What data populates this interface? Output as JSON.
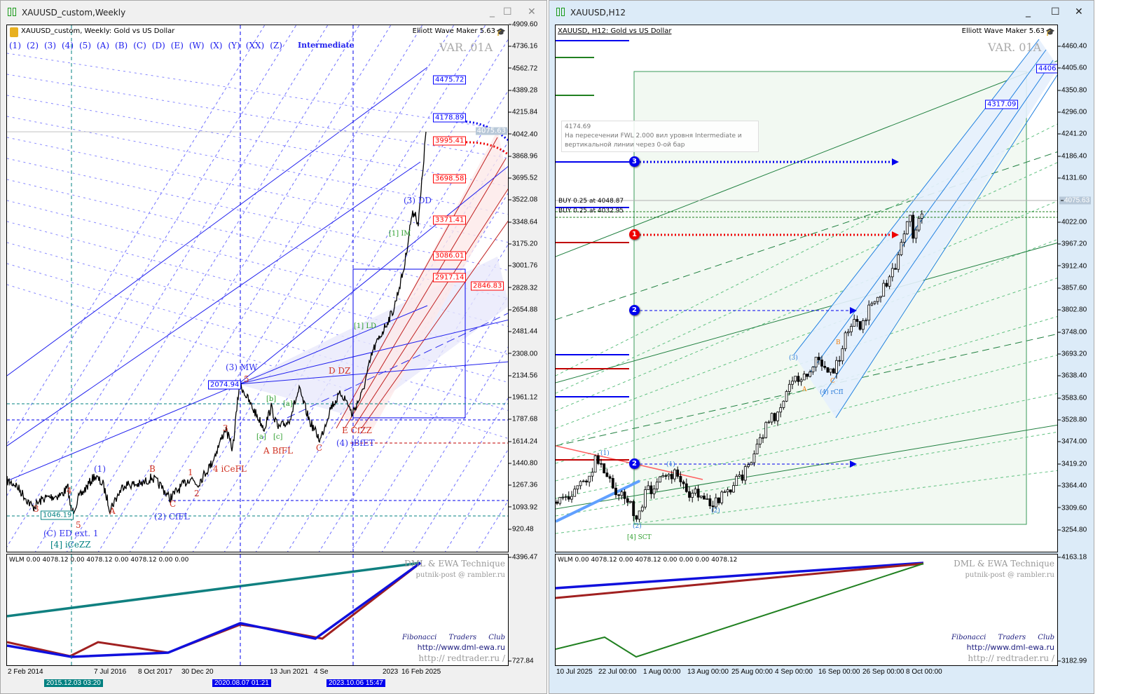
{
  "left": {
    "title": "XAUUSD_custom,Weekly",
    "chart_header": "XAUUSD_custom, Weekly:  Gold vs US Dollar",
    "plugin": "Elliott Wave Maker 5.63",
    "var_label": "VAR. 01A",
    "wave_buttons": [
      "(1)",
      "(2)",
      "(3)",
      "(4)",
      "(5)",
      "(A)",
      "(B)",
      "(C)",
      "(D)",
      "(E)",
      "(W)",
      "(X)",
      "(Y)",
      "(XX)",
      "(Z)"
    ],
    "degree": "Intermediate",
    "price_axis": [
      "4909.60",
      "4736.16",
      "4562.72",
      "4389.28",
      "4215.84",
      "4042.40",
      "3868.96",
      "3695.52",
      "3522.08",
      "3348.64",
      "3175.20",
      "3001.76",
      "2828.32",
      "2654.88",
      "2481.44",
      "2308.00",
      "2134.56",
      "1961.12",
      "1787.68",
      "1614.24",
      "1440.80",
      "1267.36",
      "1093.92",
      "920.48"
    ],
    "current_price": "4075.63",
    "time_axis": [
      "2 Feb 2014",
      "7 Jul 2016",
      "8 Oct 2017",
      "30 Dec 20",
      "13 Jun 2021",
      "4 Se",
      "2023",
      "16 Feb 2025"
    ],
    "time_markers": [
      "2015.12.03 03:20",
      "2020.08.07 01:21",
      "2023.10.06 15:47"
    ],
    "price_levels": [
      {
        "value": "4475.72",
        "color": "#0000ff"
      },
      {
        "value": "4178.89",
        "color": "#0000ff"
      },
      {
        "value": "3995.41",
        "color": "#ff0000"
      },
      {
        "value": "3698.58",
        "color": "#ff0000"
      },
      {
        "value": "3371.41",
        "color": "#ff0000"
      },
      {
        "value": "3086.01",
        "color": "#ff0000"
      },
      {
        "value": "2917.14",
        "color": "#ff0000"
      },
      {
        "value": "2846.83",
        "color": "#ff0000"
      },
      {
        "value": "2074.94",
        "color": "#0000ff"
      },
      {
        "value": "1046.19",
        "color": "#008080"
      }
    ],
    "wave_labels": [
      "(3) MW",
      "5",
      "3",
      "4 iCeFL",
      "1",
      "2",
      "(1)",
      "B",
      "A",
      "C",
      "(2) CfFL",
      "3",
      "4",
      "5",
      "(C) ED ext. 1",
      "[4] iCeZZ",
      "[b]",
      "[a]",
      "[a]",
      "[c]",
      "A BfFL",
      "C",
      "D DZ",
      "E CfZZ",
      "(4) iBfET",
      "[1] LD",
      "[1] IM",
      "(3) DD"
    ],
    "indicator": {
      "readout": "WLM 0.00 4078.12 0.00 4078.12 0.00 4078.12 0.00 0.00",
      "axis_top": "4396.47",
      "axis_bottom": "727.84",
      "watermark": "DML & EWA Technique",
      "email": "putnik-post @ rambler.ru",
      "club": "Fibonacci Traders Club",
      "url1": "http://www.dml-ewa.ru",
      "url2": "http:// redtrader.ru /"
    }
  },
  "right": {
    "title": "XAUUSD,H12",
    "chart_header": "XAUUSD, H12:  Gold vs US Dollar",
    "plugin": "Elliott Wave Maker 5.63",
    "var_label": "VAR. 01A",
    "price_axis": [
      "4460.40",
      "4405.60",
      "4350.80",
      "4296.00",
      "4241.20",
      "4186.40",
      "4131.60",
      "4022.00",
      "3967.20",
      "3912.40",
      "3857.60",
      "3802.80",
      "3748.00",
      "3693.20",
      "3638.40",
      "3583.60",
      "3528.80",
      "3474.00",
      "3419.20",
      "3364.40",
      "3309.60",
      "3254.80"
    ],
    "current_price": "4075.63",
    "time_axis": [
      "10 Jul 2025",
      "22 Jul 00:00",
      "1 Aug 00:00",
      "13 Aug 00:00",
      "25 Aug 00:00",
      "4 Sep 00:00",
      "16 Sep 00:00",
      "26 Sep 00:00",
      "8 Oct 00:00"
    ],
    "price_levels": [
      {
        "value": "4406.",
        "color": "#0000ff"
      },
      {
        "value": "4317.09",
        "color": "#0000ff"
      }
    ],
    "tooltip": {
      "value": "4174.69",
      "text": "На пересечении FWL 2.000 вил уровня Intermediate и вертикальной линии через 0-ой бар"
    },
    "orders": [
      "BUY 0.25 at 4048.87",
      "BUY 0.25 at 4032.95"
    ],
    "badges": [
      {
        "label": "3",
        "color": "#0000ee"
      },
      {
        "label": "1",
        "color": "#ee0000"
      },
      {
        "label": "2",
        "color": "#0000ee"
      },
      {
        "label": "2",
        "color": "#0000ee"
      }
    ],
    "wave_labels": [
      "(3)",
      "A",
      "B",
      "C",
      "(4) rCfI",
      "(2)",
      "(2)",
      "[4] SCT",
      "(1)",
      "(1)"
    ],
    "indicator": {
      "readout": "WLM 0.00 4078.12 0.00 4078.12 0.00 0.00 0.00 4078.12",
      "axis_top": "4163.18",
      "axis_bottom": "3182.99",
      "watermark": "DML & EWA Technique",
      "email": "putnik-post @ rambler.ru",
      "club": "Fibonacci Traders Club",
      "url1": "http://www.dml-ewa.ru",
      "url2": "http:// redtrader.ru /"
    }
  }
}
